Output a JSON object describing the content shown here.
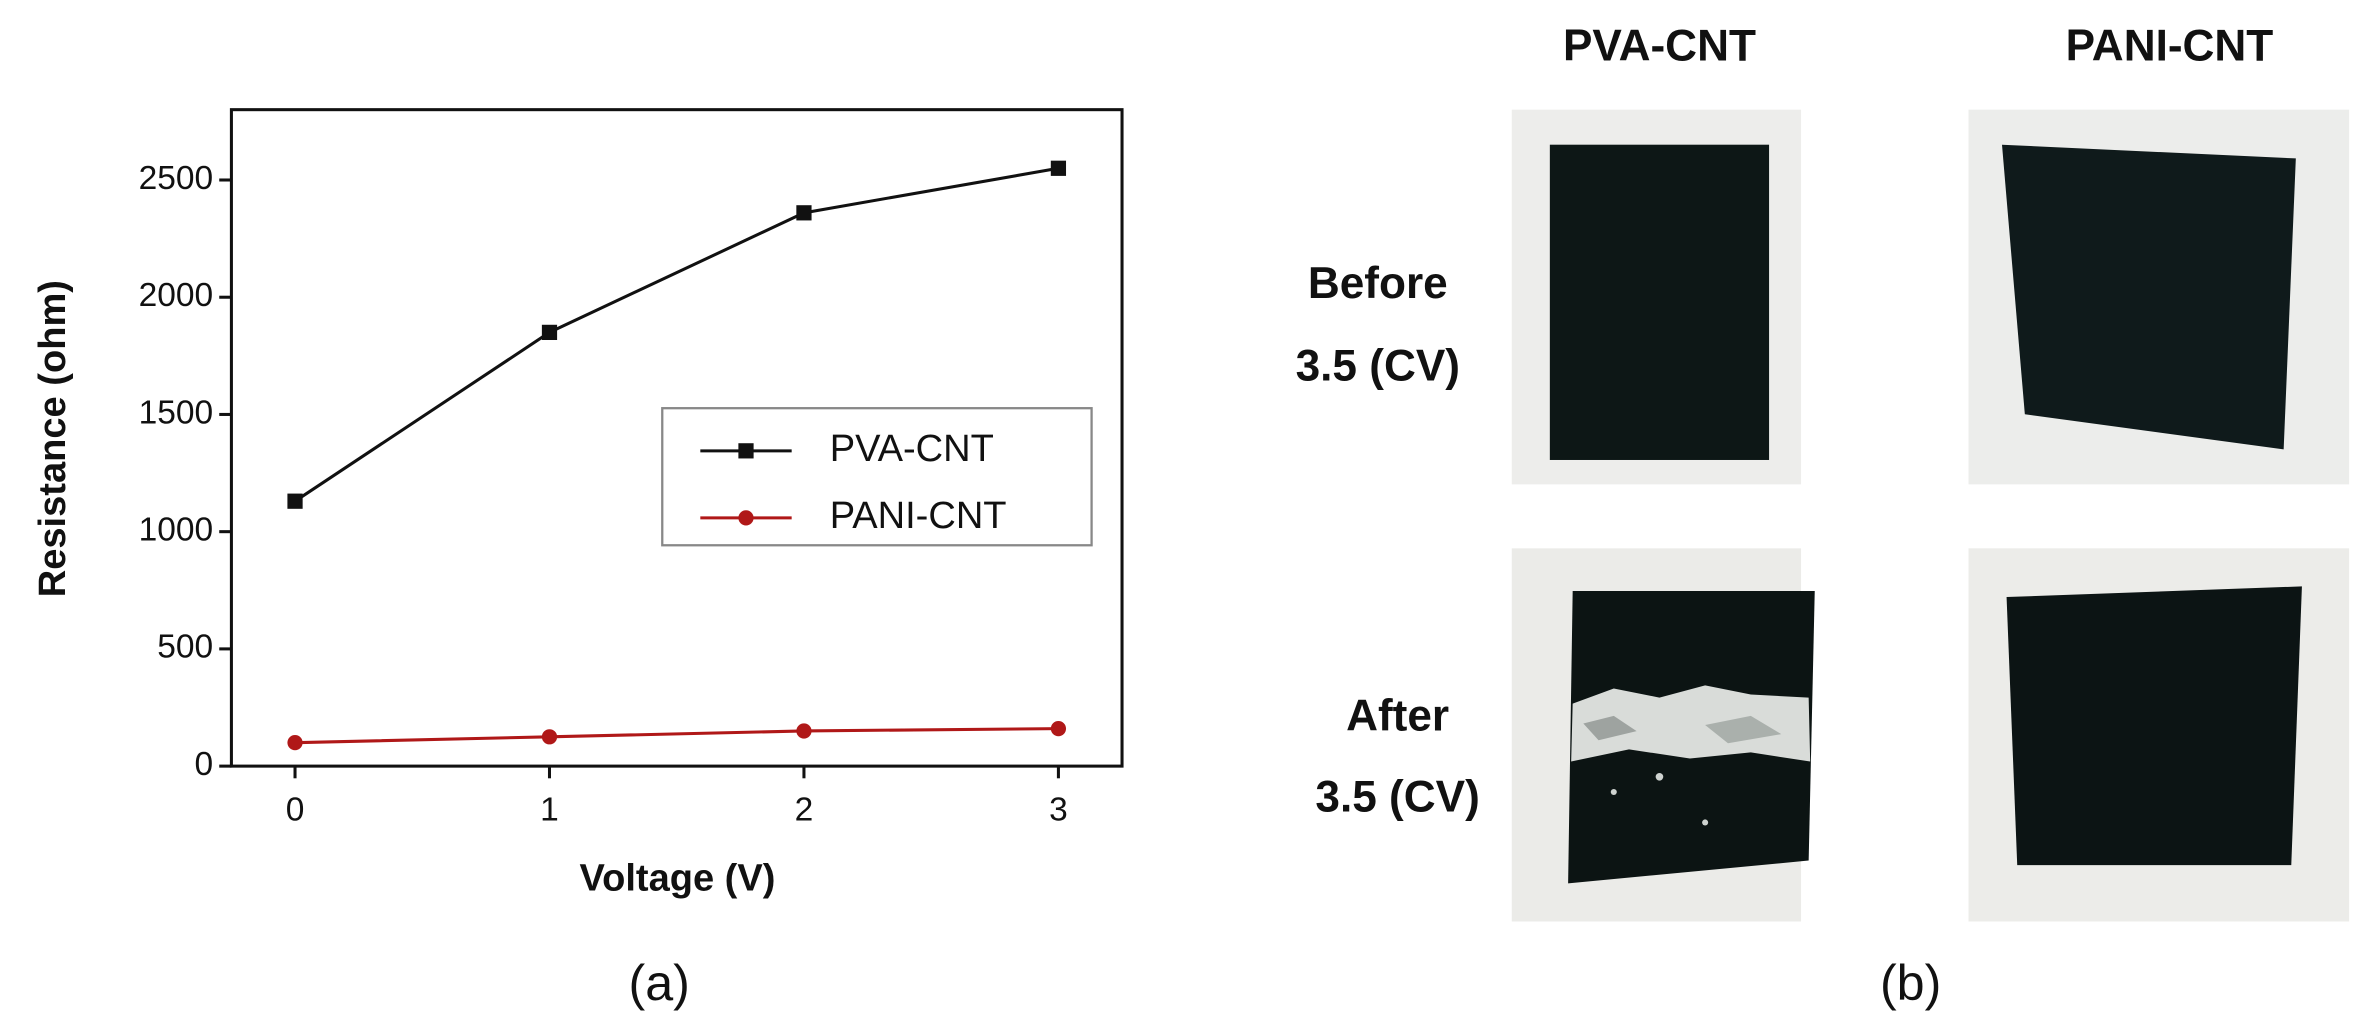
{
  "chart_data": {
    "type": "line",
    "x_label": "Voltage (V)",
    "y_label": "Resistance (ohm)",
    "x": [
      0,
      1,
      2,
      3
    ],
    "series": [
      {
        "name": "PVA-CNT",
        "color": "#111111",
        "marker": "square",
        "values": [
          1130,
          1850,
          2360,
          2550
        ]
      },
      {
        "name": "PANI-CNT",
        "color": "#b01818",
        "marker": "circle",
        "values": [
          100,
          125,
          150,
          160
        ]
      }
    ],
    "xlim": [
      -0.25,
      3.25
    ],
    "xticks": [
      0,
      1,
      2,
      3
    ],
    "ylim": [
      0,
      2800
    ],
    "yticks": [
      0,
      500,
      1000,
      1500,
      2000,
      2500
    ],
    "legend": "center right",
    "panel_label": "(a)"
  },
  "photo_panel": {
    "panel_label": "(b)",
    "columns": [
      "PVA-CNT",
      "PANI-CNT"
    ],
    "rows": [
      [
        "Before",
        "3.5 (CV)"
      ],
      [
        "After",
        "3.5 (CV)"
      ]
    ]
  }
}
